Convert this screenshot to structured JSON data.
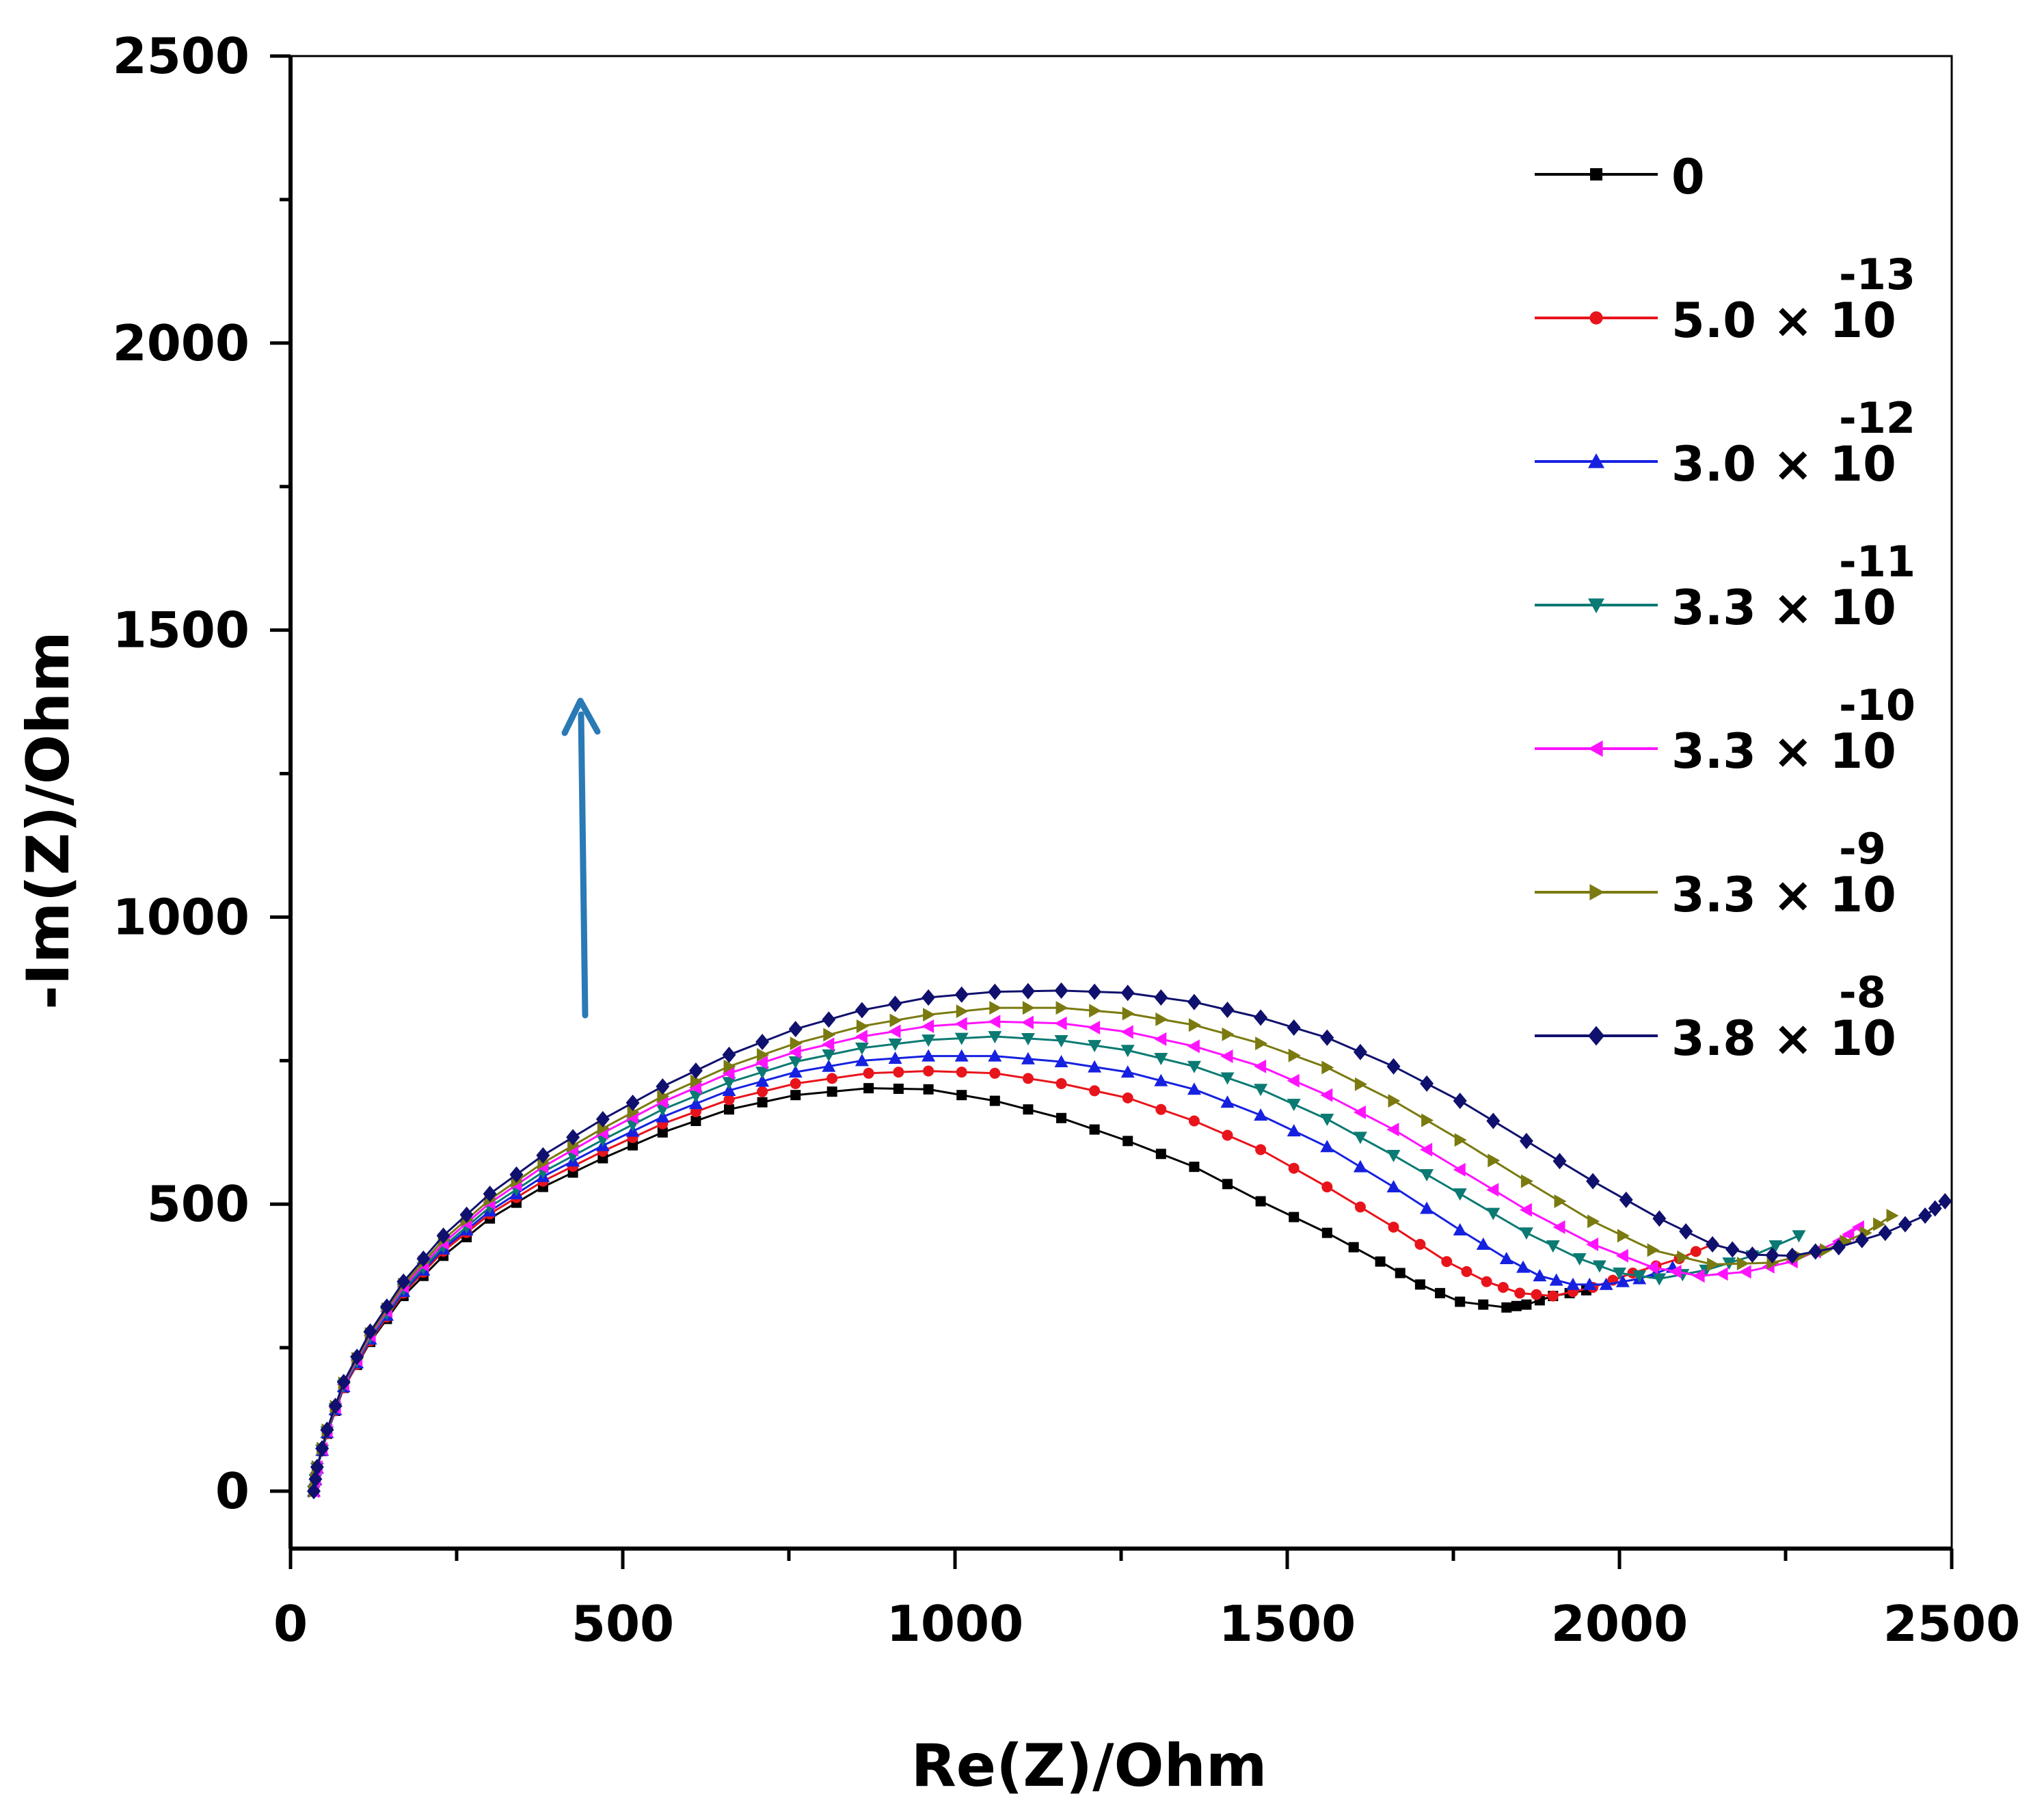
{
  "chart_data": {
    "type": "scatter",
    "title": "",
    "xlabel": "Re(Z)/Ohm",
    "ylabel": "-Im(Z)/Ohm",
    "xlim": [
      0,
      2500
    ],
    "ylim": [
      -100,
      2500
    ],
    "xticks": [
      "0",
      "500",
      "1000",
      "1500",
      "2000",
      "2500"
    ],
    "yticks": [
      "0",
      "500",
      "1000",
      "1500",
      "2000",
      "2500"
    ],
    "legend_position": "top-right",
    "annotation": "upward arrow indicating increasing concentration",
    "series": [
      {
        "name": "0",
        "base": "",
        "exponent": "",
        "color": "#000000",
        "marker": "square",
        "points": [
          [
            35,
            0
          ],
          [
            40,
            40
          ],
          [
            55,
            100
          ],
          [
            80,
            180
          ],
          [
            120,
            260
          ],
          [
            170,
            340
          ],
          [
            230,
            410
          ],
          [
            300,
            475
          ],
          [
            380,
            530
          ],
          [
            470,
            580
          ],
          [
            560,
            625
          ],
          [
            660,
            665
          ],
          [
            760,
            690
          ],
          [
            870,
            702
          ],
          [
            960,
            700
          ],
          [
            1060,
            680
          ],
          [
            1160,
            650
          ],
          [
            1260,
            610
          ],
          [
            1360,
            565
          ],
          [
            1460,
            505
          ],
          [
            1560,
            450
          ],
          [
            1640,
            400
          ],
          [
            1700,
            360
          ],
          [
            1760,
            330
          ],
          [
            1830,
            320
          ],
          [
            1860,
            325
          ],
          [
            1900,
            340
          ],
          [
            1950,
            350
          ]
        ]
      },
      {
        "name": "5.0 × 10^-13",
        "base": "5.0 × 10",
        "exponent": "-13",
        "color": "#e8141b",
        "marker": "circle",
        "points": [
          [
            35,
            0
          ],
          [
            40,
            40
          ],
          [
            55,
            100
          ],
          [
            80,
            180
          ],
          [
            120,
            262
          ],
          [
            170,
            345
          ],
          [
            230,
            418
          ],
          [
            300,
            483
          ],
          [
            380,
            540
          ],
          [
            470,
            592
          ],
          [
            560,
            640
          ],
          [
            660,
            682
          ],
          [
            760,
            710
          ],
          [
            870,
            728
          ],
          [
            960,
            732
          ],
          [
            1060,
            728
          ],
          [
            1160,
            710
          ],
          [
            1260,
            685
          ],
          [
            1360,
            645
          ],
          [
            1460,
            595
          ],
          [
            1560,
            530
          ],
          [
            1660,
            460
          ],
          [
            1740,
            400
          ],
          [
            1800,
            365
          ],
          [
            1850,
            345
          ],
          [
            1900,
            340
          ],
          [
            1960,
            355
          ],
          [
            2020,
            380
          ],
          [
            2090,
            405
          ],
          [
            2140,
            430
          ]
        ]
      },
      {
        "name": "3.0 × 10^-12",
        "base": "3.0 × 10",
        "exponent": "-12",
        "color": "#1621e0",
        "marker": "triangle-up",
        "points": [
          [
            35,
            0
          ],
          [
            40,
            40
          ],
          [
            55,
            102
          ],
          [
            80,
            182
          ],
          [
            120,
            265
          ],
          [
            170,
            348
          ],
          [
            230,
            422
          ],
          [
            300,
            488
          ],
          [
            380,
            548
          ],
          [
            470,
            602
          ],
          [
            560,
            652
          ],
          [
            660,
            698
          ],
          [
            760,
            730
          ],
          [
            860,
            750
          ],
          [
            960,
            758
          ],
          [
            1060,
            758
          ],
          [
            1160,
            748
          ],
          [
            1260,
            730
          ],
          [
            1360,
            700
          ],
          [
            1460,
            655
          ],
          [
            1560,
            600
          ],
          [
            1660,
            530
          ],
          [
            1760,
            455
          ],
          [
            1830,
            405
          ],
          [
            1880,
            375
          ],
          [
            1930,
            360
          ],
          [
            1980,
            360
          ],
          [
            2030,
            370
          ],
          [
            2080,
            390
          ]
        ]
      },
      {
        "name": "3.3 × 10^-11",
        "base": "3.3 × 10",
        "exponent": "-11",
        "color": "#0b7a73",
        "marker": "triangle-down",
        "points": [
          [
            35,
            0
          ],
          [
            40,
            40
          ],
          [
            55,
            103
          ],
          [
            80,
            184
          ],
          [
            120,
            268
          ],
          [
            170,
            352
          ],
          [
            230,
            426
          ],
          [
            300,
            495
          ],
          [
            380,
            556
          ],
          [
            470,
            612
          ],
          [
            560,
            665
          ],
          [
            660,
            712
          ],
          [
            760,
            748
          ],
          [
            860,
            772
          ],
          [
            960,
            786
          ],
          [
            1060,
            792
          ],
          [
            1160,
            785
          ],
          [
            1260,
            768
          ],
          [
            1360,
            740
          ],
          [
            1460,
            700
          ],
          [
            1560,
            648
          ],
          [
            1660,
            585
          ],
          [
            1760,
            518
          ],
          [
            1860,
            450
          ],
          [
            1940,
            405
          ],
          [
            2000,
            380
          ],
          [
            2060,
            370
          ],
          [
            2130,
            385
          ],
          [
            2200,
            410
          ],
          [
            2270,
            445
          ]
        ]
      },
      {
        "name": "3.3 × 10^-10",
        "base": "3.3 × 10",
        "exponent": "-10",
        "color": "#ff13ff",
        "marker": "triangle-left",
        "points": [
          [
            35,
            0
          ],
          [
            40,
            42
          ],
          [
            55,
            105
          ],
          [
            80,
            186
          ],
          [
            120,
            271
          ],
          [
            170,
            356
          ],
          [
            230,
            432
          ],
          [
            300,
            502
          ],
          [
            380,
            565
          ],
          [
            470,
            624
          ],
          [
            560,
            678
          ],
          [
            660,
            728
          ],
          [
            760,
            765
          ],
          [
            860,
            792
          ],
          [
            960,
            810
          ],
          [
            1060,
            818
          ],
          [
            1160,
            815
          ],
          [
            1260,
            800
          ],
          [
            1360,
            775
          ],
          [
            1460,
            740
          ],
          [
            1560,
            690
          ],
          [
            1660,
            630
          ],
          [
            1760,
            560
          ],
          [
            1860,
            490
          ],
          [
            1960,
            430
          ],
          [
            2050,
            390
          ],
          [
            2120,
            375
          ],
          [
            2190,
            382
          ],
          [
            2260,
            400
          ],
          [
            2330,
            435
          ],
          [
            2360,
            460
          ]
        ]
      },
      {
        "name": "3.3 × 10^-9",
        "base": "3.3 × 10",
        "exponent": "-9",
        "color": "#7a7a10",
        "marker": "triangle-right",
        "points": [
          [
            35,
            0
          ],
          [
            40,
            42
          ],
          [
            55,
            106
          ],
          [
            80,
            188
          ],
          [
            120,
            274
          ],
          [
            170,
            360
          ],
          [
            230,
            438
          ],
          [
            300,
            508
          ],
          [
            380,
            572
          ],
          [
            470,
            632
          ],
          [
            560,
            688
          ],
          [
            660,
            740
          ],
          [
            760,
            780
          ],
          [
            860,
            810
          ],
          [
            960,
            830
          ],
          [
            1060,
            842
          ],
          [
            1160,
            842
          ],
          [
            1260,
            832
          ],
          [
            1360,
            812
          ],
          [
            1460,
            780
          ],
          [
            1560,
            738
          ],
          [
            1660,
            680
          ],
          [
            1760,
            612
          ],
          [
            1860,
            540
          ],
          [
            1960,
            470
          ],
          [
            2050,
            420
          ],
          [
            2140,
            395
          ],
          [
            2230,
            398
          ],
          [
            2310,
            420
          ],
          [
            2370,
            450
          ],
          [
            2410,
            480
          ]
        ]
      },
      {
        "name": "3.8 × 10^-8",
        "base": "3.8 × 10",
        "exponent": "-8",
        "color": "#10106e",
        "marker": "diamond",
        "points": [
          [
            35,
            0
          ],
          [
            40,
            42
          ],
          [
            55,
            107
          ],
          [
            80,
            190
          ],
          [
            120,
            278
          ],
          [
            170,
            365
          ],
          [
            230,
            445
          ],
          [
            300,
            518
          ],
          [
            380,
            585
          ],
          [
            470,
            648
          ],
          [
            560,
            705
          ],
          [
            660,
            760
          ],
          [
            760,
            805
          ],
          [
            860,
            838
          ],
          [
            960,
            860
          ],
          [
            1060,
            870
          ],
          [
            1160,
            872
          ],
          [
            1260,
            868
          ],
          [
            1360,
            852
          ],
          [
            1460,
            825
          ],
          [
            1560,
            790
          ],
          [
            1660,
            740
          ],
          [
            1760,
            680
          ],
          [
            1860,
            610
          ],
          [
            1960,
            540
          ],
          [
            2060,
            475
          ],
          [
            2140,
            430
          ],
          [
            2200,
            412
          ],
          [
            2260,
            410
          ],
          [
            2330,
            425
          ],
          [
            2400,
            450
          ],
          [
            2460,
            480
          ],
          [
            2490,
            505
          ]
        ]
      }
    ]
  }
}
